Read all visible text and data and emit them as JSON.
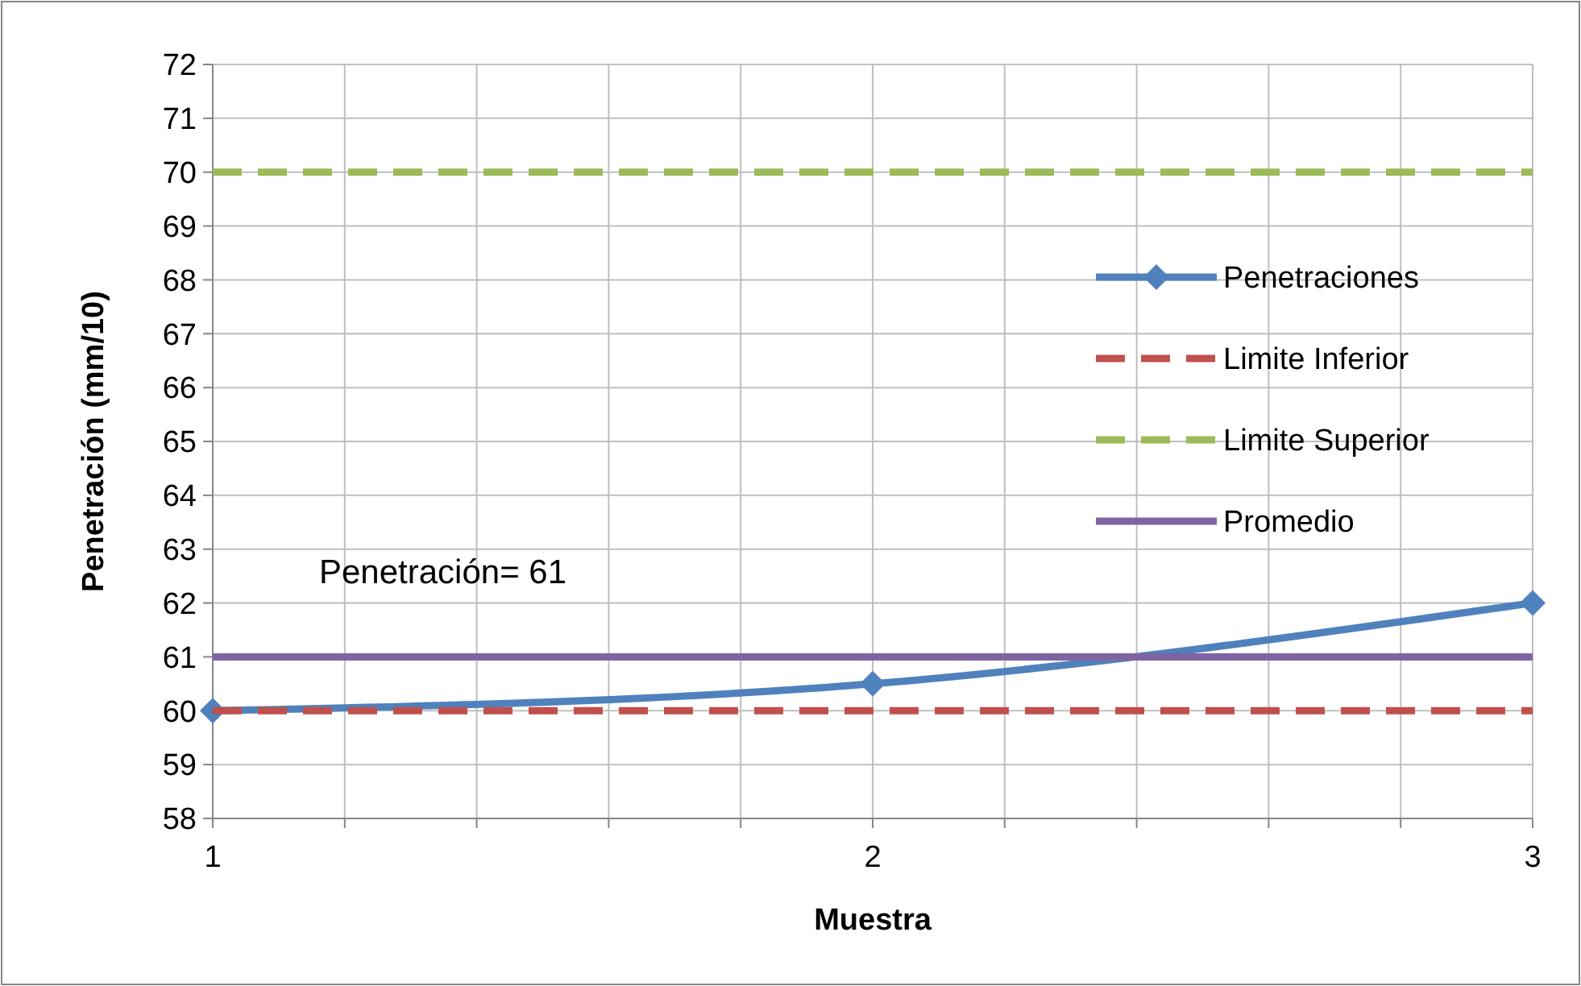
{
  "chart_data": {
    "type": "line",
    "xlabel": "Muestra",
    "ylabel": "Penetración (mm/10)",
    "x": [
      1,
      2,
      3
    ],
    "series": [
      {
        "name": "Penetraciones",
        "color": "#4f81bd",
        "values": [
          60,
          60.5,
          62
        ],
        "marker": "diamond",
        "line_style": "solid"
      },
      {
        "name": "Limite Inferior",
        "color": "#c0504d",
        "values": [
          60,
          60,
          60
        ],
        "marker": "none",
        "line_style": "dashed"
      },
      {
        "name": "Limite Superior",
        "color": "#9bbb59",
        "values": [
          70,
          70,
          70
        ],
        "marker": "none",
        "line_style": "dashed"
      },
      {
        "name": "Promedio",
        "color": "#8064a2",
        "values": [
          61,
          61,
          61
        ],
        "marker": "none",
        "line_style": "solid"
      }
    ],
    "xlim": [
      1,
      3
    ],
    "xticks": [
      1,
      {
        "value": 1.2,
        "label": null
      },
      {
        "value": 1.4,
        "label": null
      },
      {
        "value": 1.6,
        "label": null
      },
      {
        "value": 1.8,
        "label": null
      },
      2,
      {
        "value": 2.2,
        "label": null
      },
      {
        "value": 2.4,
        "label": null
      },
      {
        "value": 2.6,
        "label": null
      },
      {
        "value": 2.8,
        "label": null
      },
      3
    ],
    "ylim": [
      58,
      72
    ],
    "yticks": [
      58,
      59,
      60,
      61,
      62,
      63,
      64,
      65,
      66,
      67,
      68,
      69,
      70,
      71,
      72
    ],
    "grid": true,
    "legend": "right",
    "annotations": [
      "Penetración= 61"
    ]
  }
}
